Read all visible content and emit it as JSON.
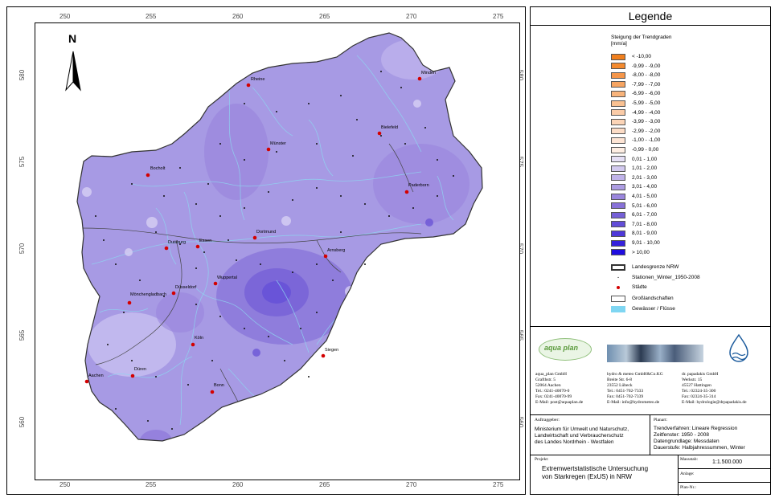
{
  "map": {
    "north_label": "N",
    "grid_x_labels": [
      "250",
      "255",
      "260",
      "265",
      "270",
      "275"
    ],
    "grid_y_labels": [
      "580",
      "575",
      "570",
      "565",
      "560"
    ],
    "cities": [
      {
        "name": "Rheine"
      },
      {
        "name": "Minden"
      },
      {
        "name": "Münster"
      },
      {
        "name": "Bielefeld"
      },
      {
        "name": "Bocholt"
      },
      {
        "name": "Paderborn"
      },
      {
        "name": "Essen"
      },
      {
        "name": "Dortmund"
      },
      {
        "name": "Duisburg"
      },
      {
        "name": "Arnsberg"
      },
      {
        "name": "Wuppertal"
      },
      {
        "name": "Düsseldorf"
      },
      {
        "name": "Mönchengladbach"
      },
      {
        "name": "Köln"
      },
      {
        "name": "Siegen"
      },
      {
        "name": "Düren"
      },
      {
        "name": "Aachen"
      },
      {
        "name": "Bonn"
      }
    ]
  },
  "legend": {
    "title": "Legende",
    "subtitle": "Steigung der Trendgraden [mm/a]",
    "classes": [
      {
        "label": "< -10,00",
        "color": "#f07f1e"
      },
      {
        "label": "-9,99 - -9,00",
        "color": "#f38a2f"
      },
      {
        "label": "-8,00 - -8,00",
        "color": "#f5964a"
      },
      {
        "label": "-7,99 - -7,00",
        "color": "#f7a562"
      },
      {
        "label": "-6,99 - -6,00",
        "color": "#f8b37a"
      },
      {
        "label": "-5,99 - -5,00",
        "color": "#f9c192"
      },
      {
        "label": "-4,99 - -4,00",
        "color": "#facba7"
      },
      {
        "label": "-3,99 - -3,00",
        "color": "#fbd4b7"
      },
      {
        "label": "-2,99 - -2,00",
        "color": "#fcdcc6"
      },
      {
        "label": "-1,00 - -1,00",
        "color": "#fde4d4"
      },
      {
        "label": "-0,99 - 0,00",
        "color": "#feeee3"
      },
      {
        "label": "0,01 - 1,00",
        "color": "#e6e0f6"
      },
      {
        "label": "1,01 - 2,00",
        "color": "#d3caf0"
      },
      {
        "label": "2,01 - 3,00",
        "color": "#c0b3ea"
      },
      {
        "label": "3,01 - 4,00",
        "color": "#ad9de3"
      },
      {
        "label": "4,01 - 5,00",
        "color": "#9a86dd"
      },
      {
        "label": "5,01 - 6,00",
        "color": "#8872d8"
      },
      {
        "label": "6,01 - 7,00",
        "color": "#7560d7"
      },
      {
        "label": "7,01 - 8,00",
        "color": "#624dd8"
      },
      {
        "label": "8,01 - 9,00",
        "color": "#4e38da"
      },
      {
        "label": "9,01 - 10,00",
        "color": "#3622dd"
      },
      {
        "label": "> 10,00",
        "color": "#1f0de0"
      }
    ],
    "symbols": [
      {
        "label": "Landesgrenze NRW"
      },
      {
        "label": "Stationen_Winter_1950-2008"
      },
      {
        "label": "Städte"
      },
      {
        "label": "Großlandschaften"
      },
      {
        "label": "Gewässer / Flüsse"
      }
    ]
  },
  "sponsors": {
    "logo1_text": "aqua plan",
    "org1": [
      "aqua_plan GmbH",
      "Grafthstr. 5",
      "52064 Aachen",
      "Tel.: 0241-40070-0",
      "Fax: 0241-40070-99",
      "E-Mail: post@aquaplan.de"
    ],
    "org2": [
      "hydro & meteo GmbH&Co.KG",
      "Breite Str. 6-8",
      "23552 Lübeck",
      "Tel.: 0451-702-7333",
      "Fax: 0451-702-7339",
      "E-Mail: info@hydrometeo.de"
    ],
    "org3": [
      "dr. papadakis GmbH",
      "Werkstr. 15",
      "45527 Hattingen",
      "Tel.: 02324-35-300",
      "Fax: 02324-35-314",
      "E-Mail: hydrologie@drpapadakis.de"
    ]
  },
  "info": {
    "client_label": "Auftraggeber:",
    "client": [
      "Ministerium für Umwelt und Naturschutz,",
      "Landwirtschaft und Verbraucherschutz",
      "des Landes Nordrhein - Westfalen"
    ],
    "plan_label": "Planart:",
    "plan": [
      "Trendverfahren: Lineare Regression",
      "Zeitfenster: 1950 - 2008",
      "Datengrundlage: Messdaten",
      "Dauerstufe: Halbjahressummen, Winter"
    ],
    "project_label": "Projekt:",
    "project": [
      "Extremwertstatistische Untersuchung",
      "von Starkregen (ExUS) in NRW"
    ],
    "scale_label": "Massstab:",
    "scale": "1:1.500.000",
    "attachment_label": "Anlage:",
    "plan_no_label": "Plan-Nr.:"
  }
}
